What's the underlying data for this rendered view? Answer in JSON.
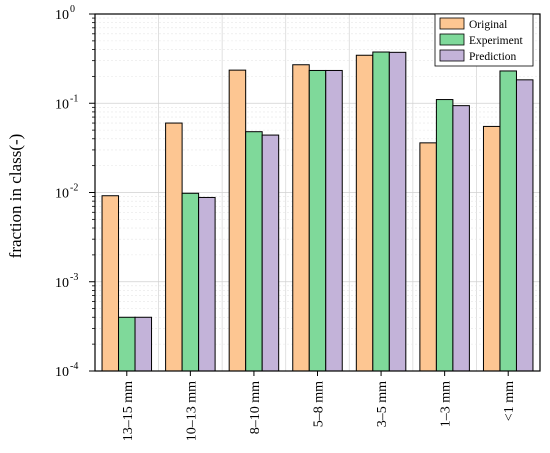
{
  "chart_data": {
    "type": "bar",
    "ylabel": "fraction in class(-)",
    "yscale": "log",
    "ylim": [
      0.0001,
      1
    ],
    "yticks": [
      {
        "value": 0.0001,
        "base": "10",
        "exp": "-4"
      },
      {
        "value": 0.001,
        "base": "10",
        "exp": "-3"
      },
      {
        "value": 0.01,
        "base": "10",
        "exp": "-2"
      },
      {
        "value": 0.1,
        "base": "10",
        "exp": "-1"
      },
      {
        "value": 1,
        "base": "10",
        "exp": "0"
      }
    ],
    "categories": [
      "13–15 mm",
      "10–13 mm",
      "8–10 mm",
      "5–8 mm",
      "3–5 mm",
      "1–3 mm",
      "<1 mm"
    ],
    "series": [
      {
        "name": "Original",
        "color": "#fdc692",
        "values": [
          0.0092,
          0.06,
          0.235,
          0.27,
          0.345,
          0.036,
          0.055
        ]
      },
      {
        "name": "Experiment",
        "color": "#7fd99a",
        "values": [
          0.0004,
          0.0098,
          0.048,
          0.233,
          0.375,
          0.11,
          0.23
        ]
      },
      {
        "name": "Prediction",
        "color": "#c3b3d9",
        "values": [
          0.0004,
          0.0088,
          0.044,
          0.233,
          0.372,
          0.094,
          0.183
        ]
      }
    ],
    "legend_position": "top-right",
    "grid": true
  }
}
